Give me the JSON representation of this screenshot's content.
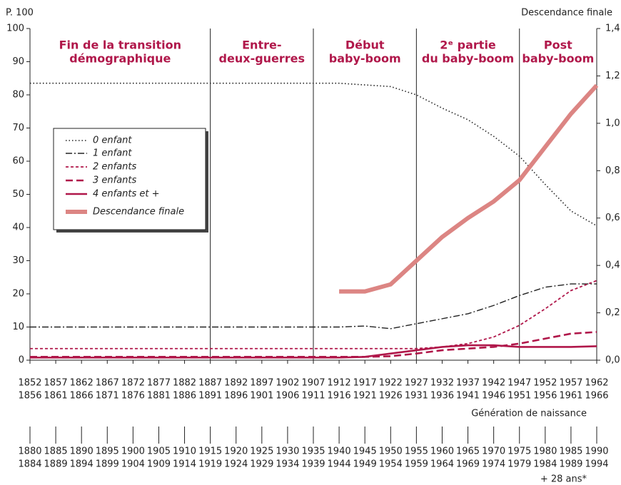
{
  "chart_data": {
    "type": "line",
    "y_axis_label": "P. 100",
    "y2_axis_label": "Descendance finale",
    "x_axis_label": "Génération de naissance",
    "x2_note": "+ 28 ans*",
    "categories": [
      [
        "1852",
        "1856"
      ],
      [
        "1857",
        "1861"
      ],
      [
        "1862",
        "1866"
      ],
      [
        "1867",
        "1871"
      ],
      [
        "1872",
        "1876"
      ],
      [
        "1877",
        "1881"
      ],
      [
        "1882",
        "1886"
      ],
      [
        "1887",
        "1891"
      ],
      [
        "1892",
        "1896"
      ],
      [
        "1897",
        "1901"
      ],
      [
        "1902",
        "1906"
      ],
      [
        "1907",
        "1911"
      ],
      [
        "1912",
        "1916"
      ],
      [
        "1917",
        "1921"
      ],
      [
        "1922",
        "1926"
      ],
      [
        "1927",
        "1931"
      ],
      [
        "1932",
        "1936"
      ],
      [
        "1937",
        "1941"
      ],
      [
        "1942",
        "1946"
      ],
      [
        "1947",
        "1951"
      ],
      [
        "1952",
        "1956"
      ],
      [
        "1957",
        "1961"
      ],
      [
        "1962",
        "1966"
      ]
    ],
    "x2_categories": [
      [
        "1880",
        "1884"
      ],
      [
        "1885",
        "1889"
      ],
      [
        "1890",
        "1894"
      ],
      [
        "1895",
        "1899"
      ],
      [
        "1900",
        "1904"
      ],
      [
        "1905",
        "1909"
      ],
      [
        "1910",
        "1914"
      ],
      [
        "1915",
        "1919"
      ],
      [
        "1920",
        "1924"
      ],
      [
        "1925",
        "1929"
      ],
      [
        "1930",
        "1934"
      ],
      [
        "1935",
        "1939"
      ],
      [
        "1940",
        "1944"
      ],
      [
        "1945",
        "1949"
      ],
      [
        "1950",
        "1954"
      ],
      [
        "1955",
        "1959"
      ],
      [
        "1960",
        "1964"
      ],
      [
        "1965",
        "1969"
      ],
      [
        "1970",
        "1974"
      ],
      [
        "1975",
        "1979"
      ],
      [
        "1980",
        "1984"
      ],
      [
        "1985",
        "1989"
      ],
      [
        "1990",
        "1994"
      ]
    ],
    "periods": [
      [
        "Fin de la transition",
        "démographique"
      ],
      [
        "Entre-",
        "deux-guerres"
      ],
      [
        "Début",
        "baby-boom"
      ],
      [
        "2ᵉ partie",
        "du baby-boom"
      ],
      [
        "Post",
        "baby-boom"
      ]
    ],
    "ylim": [
      0,
      100
    ],
    "yticks": [
      0,
      10,
      20,
      30,
      40,
      50,
      60,
      70,
      80,
      90,
      100
    ],
    "y2lim": [
      0,
      1.4
    ],
    "y2ticks": [
      {
        "value": 0,
        "label": "0,0"
      },
      {
        "value": 0.2,
        "label": "0,2"
      },
      {
        "value": 0.4,
        "label": "0,4"
      },
      {
        "value": 0.6,
        "label": "0,6"
      },
      {
        "value": 0.8,
        "label": "0,8"
      },
      {
        "value": 1.0,
        "label": "1,0"
      },
      {
        "value": 1.2,
        "label": "1,2"
      },
      {
        "value": 1.4,
        "label": "1,4"
      }
    ],
    "series": [
      {
        "name": "0 enfant",
        "color": "#222222",
        "style": "dotted",
        "values": [
          83.5,
          83.5,
          83.5,
          83.5,
          83.5,
          83.5,
          83.5,
          83.5,
          83.5,
          83.5,
          83.5,
          83.5,
          83.5,
          83,
          82.5,
          80,
          76,
          72.5,
          67.5,
          61.5,
          53,
          45,
          40.5
        ]
      },
      {
        "name": "1 enfant",
        "color": "#222222",
        "style": "dashdot",
        "values": [
          10,
          10,
          10,
          10,
          10,
          10,
          10,
          10,
          10,
          10,
          10,
          10,
          10,
          10.3,
          9.5,
          11,
          12.5,
          14,
          16.5,
          19.5,
          22,
          23,
          23
        ]
      },
      {
        "name": "2 enfants",
        "color": "#b0174a",
        "style": "shortdash",
        "values": [
          3.5,
          3.5,
          3.5,
          3.5,
          3.5,
          3.5,
          3.5,
          3.5,
          3.5,
          3.5,
          3.5,
          3.5,
          3.5,
          3.5,
          3.5,
          3.5,
          4,
          5,
          7,
          10.5,
          15.5,
          21,
          24
        ]
      },
      {
        "name": "3 enfants",
        "color": "#b0174a",
        "style": "longdash",
        "values": [
          1,
          1,
          1,
          1,
          1,
          1,
          1,
          1,
          1,
          1,
          1,
          1,
          1,
          1,
          1.2,
          2,
          3,
          3.5,
          4,
          5,
          6.5,
          8,
          8.5
        ]
      },
      {
        "name": "4 enfants et +",
        "color": "#b0174a",
        "style": "solid",
        "values": [
          0.8,
          0.8,
          0.8,
          0.8,
          0.8,
          0.8,
          0.8,
          0.8,
          0.8,
          0.8,
          0.8,
          0.8,
          0.8,
          1,
          2,
          3,
          4,
          4.5,
          4.5,
          4,
          4,
          4,
          4.2
        ]
      },
      {
        "name": "Descendance finale",
        "color": "#dc8583",
        "style": "thick",
        "axis": "y2",
        "values": [
          null,
          null,
          null,
          null,
          null,
          null,
          null,
          null,
          null,
          null,
          null,
          null,
          0.29,
          0.29,
          0.32,
          0.42,
          0.52,
          0.6,
          0.67,
          0.76,
          0.9,
          1.04,
          1.16
        ]
      }
    ]
  }
}
